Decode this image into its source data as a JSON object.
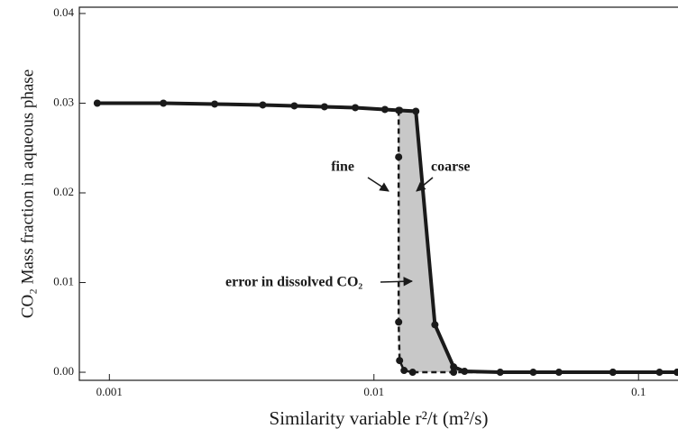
{
  "chart_data": {
    "type": "line",
    "x_label": "Similarity variable r²/t  (m²/s)",
    "y_label": "CO₂ Mass fraction in aqueous phase",
    "xlog": true,
    "xlim": [
      0.00077,
      0.141
    ],
    "xticks": [
      0.001,
      0.01,
      0.1
    ],
    "ylim": [
      -0.0009,
      0.0407
    ],
    "yticks": [
      {
        "value": 0,
        "label": "0.00"
      },
      0.01,
      0.02,
      0.03,
      0.04
    ],
    "series": [
      {
        "name": "coarse",
        "color": "#1a1a1a",
        "dashed": false,
        "x": [
          0.0009,
          0.0016,
          0.0025,
          0.0038,
          0.005,
          0.0065,
          0.0085,
          0.011,
          0.0125,
          0.0144,
          0.017,
          0.02,
          0.022,
          0.03,
          0.05,
          0.08,
          0.12,
          0.14
        ],
        "values": [
          0.03,
          0.03,
          0.0299,
          0.0298,
          0.0297,
          0.0296,
          0.0295,
          0.0293,
          0.0292,
          0.0291,
          0.0053,
          0.0006,
          0.0001,
          0,
          0,
          0,
          0,
          0
        ]
      },
      {
        "name": "fine",
        "color": "#1a1a1a",
        "dashed": true,
        "x": [
          0.0124,
          0.0124,
          0.0124,
          0.0125,
          0.013,
          0.014,
          0.02,
          0.04,
          0.08,
          0.14
        ],
        "values": [
          0.0292,
          0.024,
          0.0056,
          0.0013,
          0.0002,
          0,
          0,
          0,
          0,
          0
        ]
      }
    ],
    "annotations": [
      "fine",
      "coarse",
      "error in dissolved CO₂"
    ]
  }
}
